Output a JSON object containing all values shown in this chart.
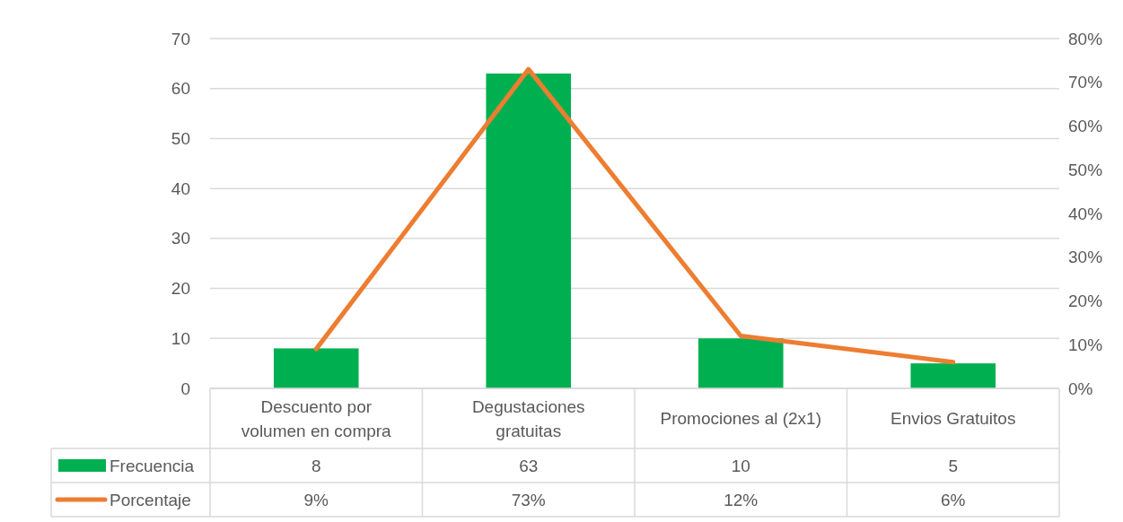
{
  "chart_data": {
    "type": "bar",
    "categories": [
      "Descuento por volumen en compra",
      "Degustaciones gratuitas",
      "Promociones al (2x1)",
      "Envios Gratuitos"
    ],
    "series": [
      {
        "name": "Frecuencia",
        "color": "#00b050",
        "values": [
          8,
          63,
          10,
          5
        ],
        "value_labels": [
          "8",
          "63",
          "10",
          "5"
        ]
      },
      {
        "name": "Porcentaje",
        "type": "line",
        "axis": "y2",
        "color": "#ed7d31",
        "values": [
          9,
          73,
          12,
          6
        ],
        "value_labels": [
          "9%",
          "73%",
          "12%",
          "6%"
        ]
      }
    ],
    "ylim": [
      0,
      70
    ],
    "yticks": [
      0,
      10,
      20,
      30,
      40,
      50,
      60,
      70
    ],
    "y2lim": [
      0,
      80
    ],
    "y2ticks": [
      {
        "value": 0,
        "label": "0%"
      },
      {
        "value": 10,
        "label": "10%"
      },
      {
        "value": 20,
        "label": "20%"
      },
      {
        "value": 30,
        "label": "30%"
      },
      {
        "value": 40,
        "label": "40%"
      },
      {
        "value": 50,
        "label": "50%"
      },
      {
        "value": 60,
        "label": "60%"
      },
      {
        "value": 70,
        "label": "70%"
      },
      {
        "value": 80,
        "label": "80%"
      }
    ],
    "grid": "y",
    "legend": "bottom"
  }
}
